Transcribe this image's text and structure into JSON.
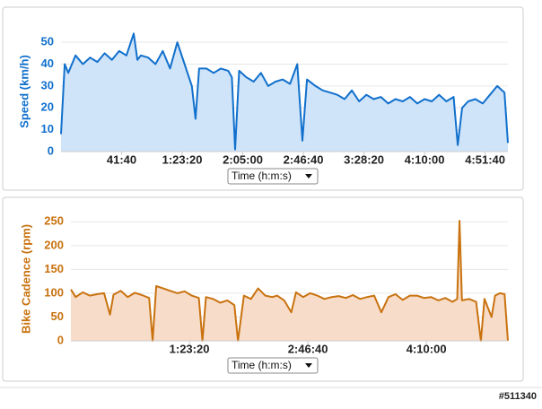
{
  "chart_data": [
    {
      "type": "area",
      "ylabel": "Speed (km/h)",
      "xlabel": "Time (h:m:s)",
      "color": "#1170cc",
      "fill": "#cfe4f9",
      "xlim": [
        0,
        18440
      ],
      "ylim": [
        0,
        55
      ],
      "yticks": [
        0,
        10,
        20,
        30,
        40,
        50
      ],
      "grid": true,
      "xticks": [
        {
          "value": 2500,
          "label": "41:40"
        },
        {
          "value": 5000,
          "label": "1:23:20"
        },
        {
          "value": 7500,
          "label": "2:05:00"
        },
        {
          "value": 10000,
          "label": "2:46:40"
        },
        {
          "value": 12500,
          "label": "3:28:20"
        },
        {
          "value": 15000,
          "label": "4:10:00"
        },
        {
          "value": 17500,
          "label": "4:51:40"
        }
      ],
      "x": [
        0,
        150,
        300,
        600,
        900,
        1200,
        1500,
        1800,
        2100,
        2400,
        2700,
        3000,
        3150,
        3300,
        3600,
        3900,
        4200,
        4500,
        4800,
        5100,
        5400,
        5550,
        5700,
        6000,
        6300,
        6600,
        6900,
        7050,
        7185,
        7350,
        7650,
        7950,
        8250,
        8550,
        8850,
        9150,
        9450,
        9750,
        9960,
        10150,
        10500,
        10800,
        11100,
        11400,
        11700,
        12000,
        12300,
        12600,
        12900,
        13200,
        13500,
        13800,
        14100,
        14400,
        14700,
        15000,
        15300,
        15600,
        15900,
        16200,
        16370,
        16550,
        16800,
        17100,
        17400,
        17700,
        18000,
        18300,
        18440
      ],
      "values": [
        8,
        40,
        36,
        44,
        40,
        43,
        41,
        45,
        42,
        46,
        44,
        54,
        42,
        44,
        43,
        40,
        46,
        38,
        50,
        40,
        30,
        15,
        38,
        38,
        36,
        38,
        37,
        34,
        1,
        37,
        34,
        32,
        36,
        30,
        32,
        33,
        31,
        40,
        5,
        33,
        30,
        28,
        27,
        26,
        24,
        28,
        23,
        26,
        24,
        25,
        22,
        24,
        23,
        25,
        22,
        24,
        23,
        26,
        23,
        25,
        3,
        20,
        23,
        24,
        22,
        26,
        30,
        27,
        4
      ]
    },
    {
      "type": "area",
      "ylabel": "Bike Cadence (rpm)",
      "xlabel": "Time (h:m:s)",
      "color": "#c9720f",
      "fill": "#f7ddc9",
      "xlim": [
        0,
        18440
      ],
      "ylim": [
        0,
        260
      ],
      "yticks": [
        0,
        50,
        100,
        150,
        200,
        250
      ],
      "grid": true,
      "xticks": [
        {
          "value": 5000,
          "label": "1:23:20"
        },
        {
          "value": 10000,
          "label": "2:46:40"
        },
        {
          "value": 15000,
          "label": "4:10:00"
        }
      ],
      "x": [
        0,
        200,
        500,
        800,
        1100,
        1400,
        1650,
        1800,
        2100,
        2400,
        2700,
        3000,
        3300,
        3450,
        3600,
        3900,
        4200,
        4500,
        4800,
        5100,
        5400,
        5550,
        5700,
        6000,
        6300,
        6600,
        6900,
        7050,
        7300,
        7600,
        7900,
        8200,
        8500,
        8700,
        9000,
        9300,
        9500,
        9800,
        10100,
        10400,
        10700,
        11000,
        11300,
        11600,
        11900,
        12200,
        12500,
        12800,
        13100,
        13400,
        13700,
        14000,
        14300,
        14600,
        14900,
        15200,
        15500,
        15800,
        16100,
        16300,
        16400,
        16500,
        16800,
        17100,
        17300,
        17450,
        17750,
        17900,
        18100,
        18300,
        18440
      ],
      "values": [
        108,
        92,
        102,
        95,
        98,
        100,
        55,
        97,
        105,
        92,
        101,
        96,
        90,
        0,
        115,
        110,
        105,
        100,
        104,
        95,
        90,
        0,
        92,
        88,
        80,
        85,
        75,
        0,
        95,
        88,
        110,
        95,
        92,
        95,
        85,
        60,
        102,
        92,
        100,
        95,
        88,
        92,
        94,
        90,
        96,
        88,
        92,
        95,
        60,
        92,
        98,
        86,
        95,
        95,
        90,
        92,
        85,
        90,
        82,
        88,
        252,
        85,
        88,
        82,
        0,
        88,
        50,
        95,
        100,
        98,
        0
      ]
    }
  ],
  "footer": "#511340"
}
